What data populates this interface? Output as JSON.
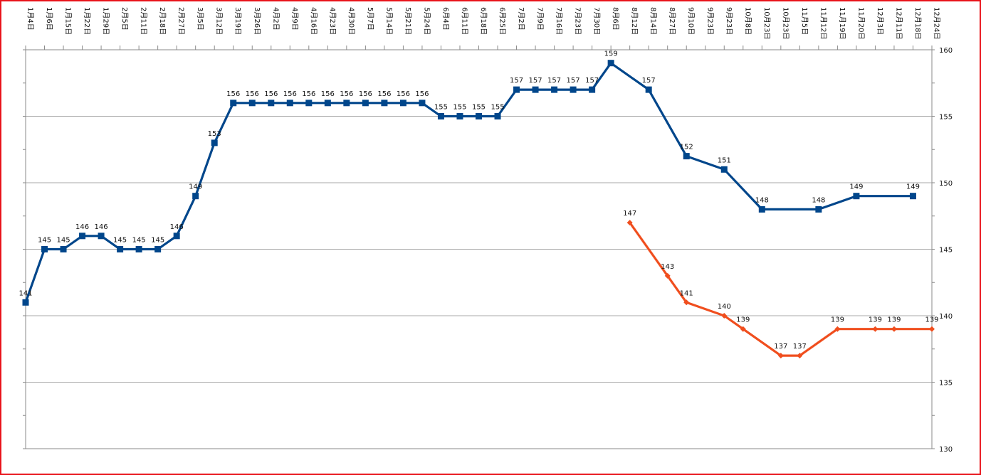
{
  "chart_data": {
    "type": "line",
    "categories": [
      "1月4日",
      "1月6日",
      "1月15日",
      "1月22日",
      "1月29日",
      "2月5日",
      "2月11日",
      "2月18日",
      "2月27日",
      "3月5日",
      "3月12日",
      "3月19日",
      "3月26日",
      "4月2日",
      "4月9日",
      "4月16日",
      "4月23日",
      "4月30日",
      "5月7日",
      "5月14日",
      "5月21日",
      "5月24日",
      "6月4日",
      "6月11日",
      "6月18日",
      "6月25日",
      "7月2日",
      "7月9日",
      "7月16日",
      "7月23日",
      "7月30日",
      "8月6日",
      "8月12日",
      "8月14日",
      "8月27日",
      "9月10日",
      "9月23日",
      "9月23日",
      "10月8日",
      "10月23日",
      "10月23日",
      "11月5日",
      "11月12日",
      "11月19日",
      "11月20日",
      "12月3日",
      "12月11日",
      "12月18日",
      "12月24日"
    ],
    "series": [
      {
        "color": "#00468b",
        "marker": "square",
        "values": [
          141,
          145,
          145,
          146,
          146,
          145,
          145,
          145,
          146,
          149,
          153,
          156,
          156,
          156,
          156,
          156,
          156,
          156,
          156,
          156,
          156,
          156,
          155,
          155,
          155,
          155,
          157,
          157,
          157,
          157,
          157,
          159,
          null,
          157,
          null,
          152,
          null,
          151,
          null,
          148,
          null,
          null,
          148,
          null,
          149,
          null,
          null,
          149,
          null
        ]
      },
      {
        "color": "#f04e1e",
        "marker": "diamond",
        "values": [
          null,
          null,
          null,
          null,
          null,
          null,
          null,
          null,
          null,
          null,
          null,
          null,
          null,
          null,
          null,
          null,
          null,
          null,
          null,
          null,
          null,
          null,
          null,
          null,
          null,
          null,
          null,
          null,
          null,
          null,
          null,
          null,
          147,
          null,
          143,
          141,
          null,
          140,
          139,
          null,
          137,
          137,
          null,
          139,
          null,
          139,
          139,
          null,
          139
        ]
      }
    ],
    "ylim": [
      130,
      160
    ],
    "yticks": [
      130,
      135,
      140,
      145,
      150,
      155,
      160
    ],
    "y_axis_position": "right",
    "grid": true,
    "legend": "none"
  }
}
